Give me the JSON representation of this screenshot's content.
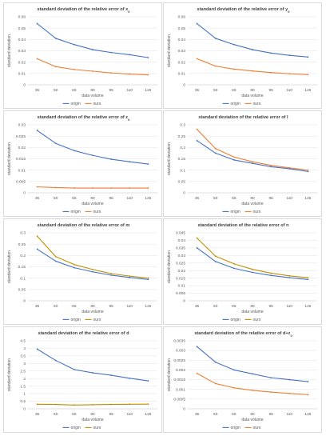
{
  "chart_data": [
    {
      "type": "line",
      "title": "standard deviation of the relative error of x",
      "title_subscript": "0",
      "xlabel": "data volume",
      "ylabel": "standard deviation",
      "categories": [
        "35",
        "50",
        "65",
        "80",
        "95",
        "110",
        "125"
      ],
      "ylim": [
        0,
        0.06
      ],
      "yticks": [
        "0",
        "0.01",
        "0.02",
        "0.03",
        "0.04",
        "0.05",
        "0.06"
      ],
      "grid": true,
      "legend": "bottom",
      "series": [
        {
          "name": "origin",
          "color": "#4472c4",
          "values": [
            0.054,
            0.041,
            0.0355,
            0.031,
            0.0285,
            0.0265,
            0.024
          ]
        },
        {
          "name": "ours",
          "color": "#ed7d31",
          "values": [
            0.023,
            0.016,
            0.0135,
            0.012,
            0.0105,
            0.0095,
            0.0088
          ]
        }
      ]
    },
    {
      "type": "line",
      "title": "standard deviation of the relative error of y",
      "title_subscript": "0",
      "xlabel": "data volume",
      "ylabel": "standard deviation",
      "categories": [
        "35",
        "50",
        "65",
        "80",
        "95",
        "110",
        "125"
      ],
      "ylim": [
        0,
        0.06
      ],
      "yticks": [
        "0",
        "0.01",
        "0.02",
        "0.03",
        "0.04",
        "0.05",
        "0.06"
      ],
      "grid": true,
      "legend": "bottom",
      "series": [
        {
          "name": "origin",
          "color": "#4472c4",
          "values": [
            0.054,
            0.041,
            0.0355,
            0.031,
            0.028,
            0.026,
            0.0245
          ]
        },
        {
          "name": "ours",
          "color": "#ed7d31",
          "values": [
            0.023,
            0.0165,
            0.0138,
            0.0122,
            0.0108,
            0.0098,
            0.009
          ]
        }
      ]
    },
    {
      "type": "line",
      "title": "standard deviation of the relative error of z",
      "title_subscript": "0",
      "xlabel": "data volume",
      "ylabel": "standard deviation",
      "categories": [
        "35",
        "50",
        "65",
        "80",
        "95",
        "110",
        "125"
      ],
      "ylim": [
        0,
        0.03
      ],
      "yticks": [
        "0",
        "0.005",
        "0.01",
        "0.015",
        "0.02",
        "0.025",
        "0.03"
      ],
      "grid": true,
      "legend": "bottom",
      "series": [
        {
          "name": "origin",
          "color": "#4472c4",
          "values": [
            0.0275,
            0.0218,
            0.0186,
            0.0165,
            0.0148,
            0.0137,
            0.0127
          ]
        },
        {
          "name": "ours",
          "color": "#ed7d31",
          "values": [
            0.0026,
            0.0023,
            0.0021,
            0.0021,
            0.0021,
            0.0021,
            0.0021
          ]
        }
      ]
    },
    {
      "type": "line",
      "title": "standard deviation of the relative error of l",
      "title_subscript": "",
      "xlabel": "data volume",
      "ylabel": "standard deviation",
      "categories": [
        "35",
        "50",
        "65",
        "80",
        "95",
        "110",
        "125"
      ],
      "ylim": [
        0,
        0.3
      ],
      "yticks": [
        "0",
        "0.05",
        "0.1",
        "0.15",
        "0.2",
        "0.25",
        "0.3"
      ],
      "grid": true,
      "legend": "bottom",
      "series": [
        {
          "name": "origin",
          "color": "#4472c4",
          "values": [
            0.23,
            0.175,
            0.145,
            0.13,
            0.115,
            0.106,
            0.094
          ]
        },
        {
          "name": "ours",
          "color": "#ed7d31",
          "values": [
            0.28,
            0.195,
            0.158,
            0.137,
            0.121,
            0.11,
            0.1
          ]
        }
      ]
    },
    {
      "type": "line",
      "title": "standard deviation of the relative error of m",
      "title_subscript": "",
      "xlabel": "data volume",
      "ylabel": "standard deviation",
      "categories": [
        "35",
        "50",
        "65",
        "80",
        "95",
        "110",
        "125"
      ],
      "ylim": [
        0,
        0.3
      ],
      "yticks": [
        "0",
        "0.05",
        "0.1",
        "0.15",
        "0.2",
        "0.25",
        "0.3"
      ],
      "grid": true,
      "legend": "bottom",
      "series": [
        {
          "name": "origin",
          "color": "#4472c4",
          "values": [
            0.228,
            0.175,
            0.146,
            0.128,
            0.113,
            0.103,
            0.094
          ]
        },
        {
          "name": "ours",
          "color": "#bf9000",
          "values": [
            0.285,
            0.195,
            0.16,
            0.138,
            0.12,
            0.109,
            0.1
          ]
        }
      ]
    },
    {
      "type": "line",
      "title": "standard deviation of the relative error of n",
      "title_subscript": "",
      "xlabel": "data volume",
      "ylabel": "standard deviation",
      "categories": [
        "35",
        "50",
        "65",
        "80",
        "95",
        "110",
        "125"
      ],
      "ylim": [
        0,
        0.045
      ],
      "yticks": [
        "0",
        "0.005",
        "0.01",
        "0.015",
        "0.02",
        "0.025",
        "0.03",
        "0.035",
        "0.04",
        "0.045"
      ],
      "grid": true,
      "legend": "bottom",
      "series": [
        {
          "name": "origin",
          "color": "#4472c4",
          "values": [
            0.035,
            0.026,
            0.0215,
            0.0188,
            0.0168,
            0.0153,
            0.0141
          ]
        },
        {
          "name": "ours",
          "color": "#bf9000",
          "values": [
            0.0415,
            0.0295,
            0.0245,
            0.0208,
            0.0183,
            0.0165,
            0.0153
          ]
        }
      ]
    },
    {
      "type": "line",
      "title": "standard deviation of the relative error of d",
      "title_subscript": "",
      "xlabel": "data volume",
      "ylabel": "standard deviation",
      "categories": [
        "35",
        "50",
        "65",
        "80",
        "95",
        "110",
        "125"
      ],
      "ylim": [
        0,
        4.5
      ],
      "yticks": [
        "0",
        "0.5",
        "1",
        "1.5",
        "2",
        "2.5",
        "3",
        "3.5",
        "4",
        "4.5"
      ],
      "grid": true,
      "legend": "bottom",
      "series": [
        {
          "name": "origin",
          "color": "#4472c4",
          "values": [
            3.95,
            3.2,
            2.6,
            2.38,
            2.22,
            2.02,
            1.85
          ]
        },
        {
          "name": "ours",
          "color": "#bf9000",
          "values": [
            0.3,
            0.29,
            0.25,
            0.27,
            0.29,
            0.3,
            0.31
          ]
        }
      ]
    },
    {
      "type": "line",
      "title": "standard deviation of the relative error of d+z",
      "title_subscript": "0",
      "xlabel": "data volume",
      "ylabel": "standard deviation",
      "categories": [
        "35",
        "50",
        "65",
        "80",
        "95",
        "110",
        "125"
      ],
      "ylim": [
        0,
        0.0035
      ],
      "yticks": [
        "0",
        "0.0005",
        "0.001",
        "0.0015",
        "0.002",
        "0.0025",
        "0.003",
        "0.0035"
      ],
      "grid": true,
      "legend": "bottom",
      "series": [
        {
          "name": "origin",
          "color": "#4472c4",
          "values": [
            0.0032,
            0.0024,
            0.002,
            0.0018,
            0.0016,
            0.0015,
            0.0014
          ]
        },
        {
          "name": "ours",
          "color": "#ed7d31",
          "values": [
            0.00182,
            0.0013,
            0.00108,
            0.00095,
            0.00086,
            0.00079,
            0.00073
          ]
        }
      ]
    }
  ]
}
